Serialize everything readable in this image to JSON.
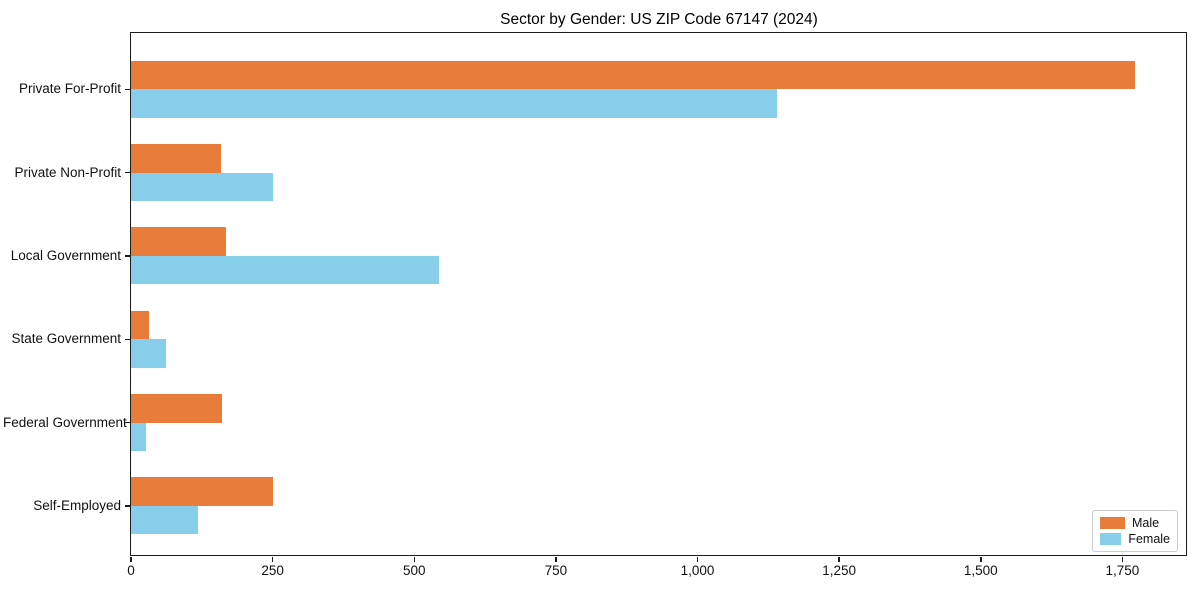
{
  "title": "Sector by Gender: US ZIP Code 67147 (2024)",
  "chart_data": {
    "type": "bar",
    "orientation": "horizontal",
    "title": "Sector by Gender: US ZIP Code 67147 (2024)",
    "categories": [
      "Private For-Profit",
      "Private Non-Profit",
      "Local Government",
      "State Government",
      "Federal Government",
      "Self-Employed"
    ],
    "series": [
      {
        "name": "Male",
        "color": "#e87d3b",
        "values": [
          1772,
          159,
          168,
          32,
          160,
          251
        ]
      },
      {
        "name": "Female",
        "color": "#87ceeb",
        "values": [
          1141,
          251,
          544,
          62,
          27,
          119
        ]
      }
    ],
    "xlabel": "",
    "ylabel": "",
    "xlim": [
      0,
      1864
    ],
    "x_ticks": [
      0,
      250,
      500,
      750,
      1000,
      1250,
      1500,
      1750
    ],
    "x_tick_labels": [
      "0",
      "250",
      "500",
      "750",
      "1,000",
      "1,250",
      "1,500",
      "1,750"
    ],
    "legend_position": "lower right",
    "grid": false,
    "plot_bg": "#ffffff",
    "spine_color": "#1c1c1c"
  }
}
